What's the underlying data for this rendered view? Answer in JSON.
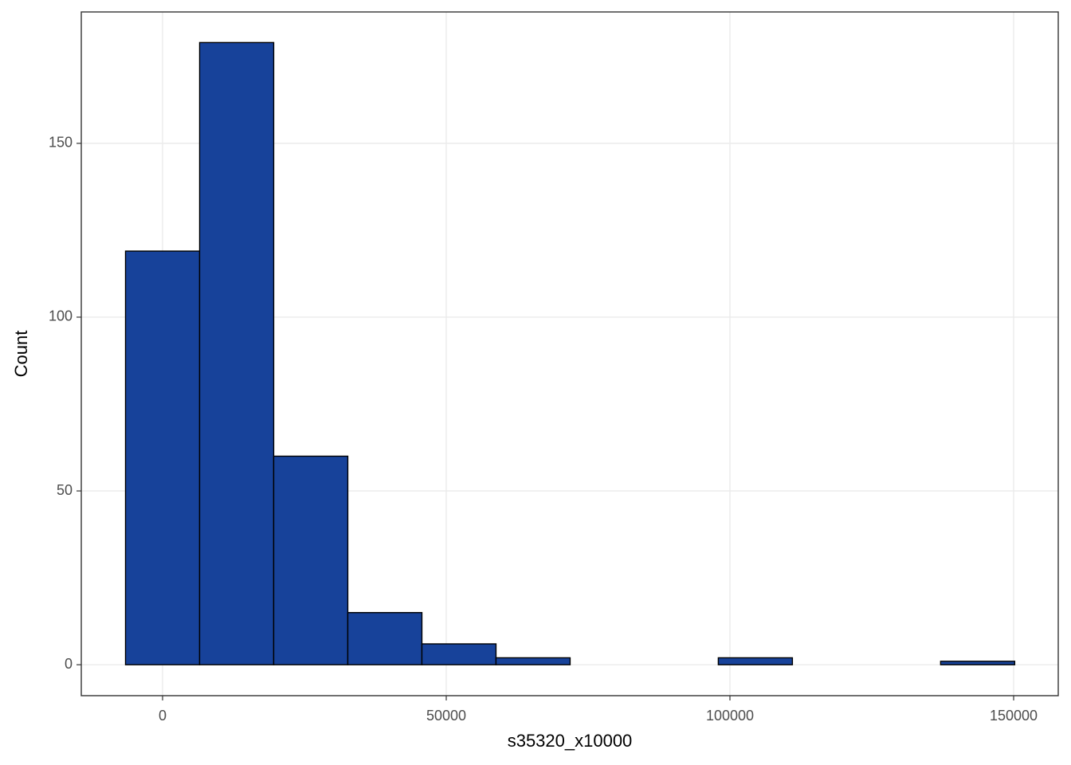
{
  "chart_data": {
    "type": "histogram",
    "x_label": "s35320_x10000",
    "y_label": "Count",
    "bins": [
      -6530,
      6530,
      19590,
      32650,
      45710,
      58770,
      71830,
      84890,
      97950,
      111010,
      124070,
      137130,
      150190
    ],
    "values": [
      119,
      179,
      60,
      15,
      6,
      2,
      0,
      0,
      2,
      0,
      0,
      1
    ],
    "color": "#17429a",
    "edge_color": "#000000",
    "xlim": [
      -14326,
      157865
    ],
    "ylim": [
      -8.9,
      187.8
    ],
    "xticks": [
      0,
      50000,
      100000,
      150000
    ],
    "yticks": [
      0,
      50,
      100,
      150
    ],
    "grid": true
  }
}
